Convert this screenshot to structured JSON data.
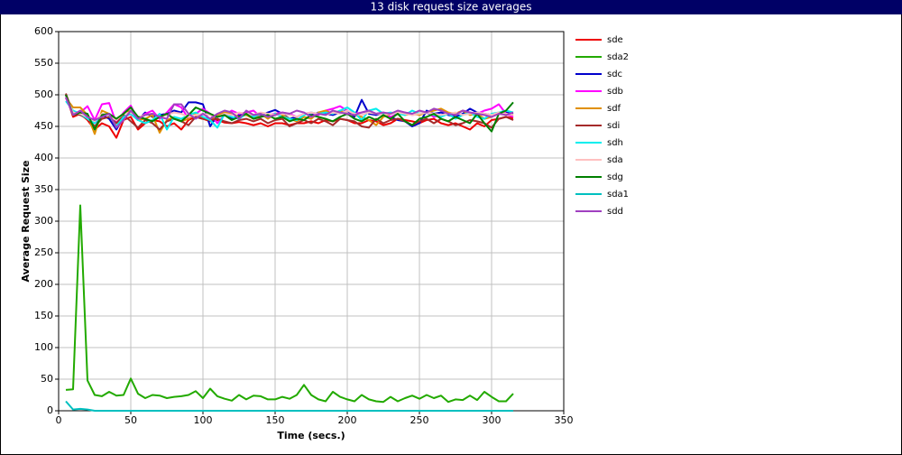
{
  "chart_data": {
    "type": "line",
    "title": "13 disk request size averages",
    "x_label": "Time (secs.)",
    "y_label": "Average Request Size",
    "xlim": [
      0,
      350
    ],
    "xticks": [
      0,
      50,
      100,
      150,
      200,
      250,
      300,
      350
    ],
    "ylim": [
      0,
      600
    ],
    "yticks": [
      0,
      50,
      100,
      150,
      200,
      250,
      300,
      350,
      400,
      450,
      500,
      550,
      600
    ],
    "grid": true,
    "legend": "right",
    "x": [
      5,
      10,
      15,
      20,
      25,
      30,
      35,
      40,
      45,
      50,
      55,
      60,
      65,
      70,
      75,
      80,
      85,
      90,
      95,
      100,
      105,
      110,
      115,
      120,
      125,
      130,
      135,
      140,
      145,
      150,
      155,
      160,
      165,
      170,
      175,
      180,
      185,
      190,
      195,
      200,
      205,
      210,
      215,
      220,
      225,
      230,
      235,
      240,
      245,
      250,
      255,
      260,
      265,
      270,
      275,
      280,
      285,
      290,
      295,
      300,
      305,
      310,
      315
    ],
    "series": [
      {
        "name": "sde",
        "color": "#ee0000",
        "values": [
          500,
          465,
          470,
          460,
          445,
          455,
          450,
          432,
          460,
          465,
          445,
          455,
          460,
          458,
          450,
          455,
          445,
          460,
          465,
          462,
          458,
          460,
          456,
          455,
          457,
          455,
          452,
          455,
          450,
          455,
          455,
          452,
          455,
          455,
          458,
          455,
          460,
          458,
          462,
          460,
          455,
          455,
          460,
          458,
          452,
          455,
          462,
          460,
          458,
          455,
          460,
          462,
          455,
          452,
          455,
          450,
          445,
          455,
          450,
          460,
          462,
          465,
          463
        ]
      },
      {
        "name": "sda2",
        "color": "#22aa00",
        "values": [
          33,
          34,
          325,
          48,
          25,
          23,
          30,
          24,
          25,
          51,
          27,
          20,
          25,
          24,
          20,
          22,
          23,
          25,
          31,
          20,
          35,
          23,
          19,
          16,
          25,
          18,
          24,
          23,
          18,
          18,
          22,
          19,
          25,
          41,
          25,
          18,
          15,
          30,
          22,
          18,
          15,
          25,
          18,
          15,
          14,
          22,
          15,
          20,
          24,
          19,
          25,
          20,
          24,
          14,
          18,
          17,
          24,
          17,
          30,
          22,
          15,
          15,
          27
        ]
      },
      {
        "name": "sdc",
        "color": "#0000cc",
        "values": [
          500,
          470,
          472,
          468,
          448,
          468,
          462,
          445,
          465,
          470,
          460,
          472,
          465,
          468,
          470,
          475,
          472,
          488,
          488,
          485,
          450,
          468,
          470,
          462,
          468,
          470,
          465,
          468,
          472,
          476,
          470,
          462,
          465,
          470,
          468,
          472,
          470,
          468,
          472,
          475,
          465,
          492,
          470,
          468,
          470,
          465,
          460,
          458,
          450,
          455,
          475,
          470,
          472,
          468,
          465,
          470,
          478,
          472,
          470,
          468,
          470,
          472,
          470
        ]
      },
      {
        "name": "sdb",
        "color": "#ff00ff",
        "values": [
          495,
          470,
          472,
          482,
          460,
          485,
          487,
          455,
          472,
          483,
          460,
          470,
          475,
          462,
          472,
          485,
          480,
          462,
          470,
          478,
          470,
          455,
          468,
          475,
          470,
          472,
          475,
          465,
          468,
          470,
          472,
          470,
          465,
          470,
          472,
          468,
          475,
          478,
          482,
          475,
          470,
          472,
          475,
          470,
          472,
          465,
          470,
          472,
          468,
          470,
          472,
          465,
          468,
          470,
          470,
          475,
          472,
          470,
          475,
          478,
          485,
          470,
          465
        ]
      },
      {
        "name": "sdf",
        "color": "#e09000",
        "values": [
          495,
          480,
          480,
          468,
          438,
          475,
          470,
          448,
          470,
          475,
          460,
          462,
          468,
          440,
          460,
          465,
          458,
          462,
          470,
          462,
          460,
          468,
          472,
          470,
          465,
          468,
          462,
          470,
          462,
          470,
          468,
          462,
          458,
          465,
          462,
          472,
          475,
          470,
          475,
          470,
          468,
          465,
          460,
          452,
          465,
          470,
          472,
          468,
          470,
          468,
          472,
          475,
          478,
          472,
          470,
          475,
          468,
          470,
          462,
          465,
          472,
          470,
          468
        ]
      },
      {
        "name": "sdi",
        "color": "#a52a2a",
        "values": [
          502,
          470,
          468,
          462,
          450,
          462,
          465,
          455,
          468,
          458,
          448,
          460,
          455,
          445,
          458,
          462,
          458,
          452,
          465,
          462,
          460,
          462,
          458,
          455,
          460,
          462,
          458,
          462,
          455,
          460,
          462,
          450,
          455,
          460,
          455,
          462,
          458,
          452,
          462,
          460,
          458,
          450,
          448,
          462,
          455,
          460,
          462,
          458,
          452,
          458,
          462,
          455,
          462,
          458,
          452,
          455,
          460,
          458,
          455,
          448,
          462,
          465,
          460
        ]
      },
      {
        "name": "sdh",
        "color": "#00eeee",
        "values": [
          490,
          475,
          470,
          462,
          455,
          470,
          468,
          450,
          465,
          470,
          460,
          455,
          460,
          470,
          445,
          465,
          462,
          468,
          472,
          465,
          460,
          448,
          470,
          465,
          462,
          470,
          465,
          470,
          465,
          470,
          465,
          462,
          460,
          468,
          472,
          470,
          472,
          470,
          475,
          480,
          472,
          460,
          475,
          478,
          470,
          472,
          470,
          468,
          475,
          470,
          472,
          468,
          465,
          470,
          462,
          468,
          472,
          465,
          462,
          470,
          472,
          475,
          472
        ]
      },
      {
        "name": "sda",
        "color": "#ffc0c0",
        "values": [
          498,
          472,
          470,
          465,
          458,
          470,
          468,
          460,
          470,
          472,
          465,
          468,
          470,
          465,
          468,
          472,
          470,
          465,
          468,
          470,
          468,
          465,
          470,
          468,
          472,
          470,
          468,
          472,
          470,
          468,
          470,
          468,
          465,
          470,
          472,
          470,
          468,
          472,
          470,
          475,
          470,
          468,
          472,
          470,
          468,
          470,
          472,
          470,
          468,
          470,
          472,
          470,
          468,
          470,
          472,
          468,
          470,
          472,
          470,
          468,
          472,
          470,
          468
        ]
      },
      {
        "name": "sdg",
        "color": "#008000",
        "values": [
          500,
          468,
          472,
          470,
          445,
          468,
          470,
          462,
          470,
          480,
          465,
          462,
          458,
          465,
          470,
          462,
          458,
          468,
          480,
          475,
          470,
          465,
          468,
          460,
          465,
          470,
          462,
          465,
          468,
          462,
          465,
          458,
          462,
          460,
          468,
          465,
          462,
          458,
          465,
          470,
          462,
          458,
          465,
          460,
          468,
          462,
          470,
          458,
          452,
          462,
          465,
          470,
          462,
          458,
          465,
          460,
          455,
          470,
          455,
          442,
          470,
          475,
          488
        ]
      },
      {
        "name": "sda1",
        "color": "#00c0c0",
        "values": [
          15,
          2,
          3,
          2,
          0,
          0,
          0,
          0,
          0,
          0,
          0,
          0,
          0,
          0,
          0,
          0,
          0,
          0,
          0,
          0,
          0,
          0,
          0,
          0,
          0,
          0,
          0,
          0,
          0,
          0,
          0,
          0,
          0,
          0,
          0,
          0,
          0,
          0,
          0,
          0,
          0,
          0,
          0,
          0,
          0,
          0,
          0,
          0,
          0,
          0,
          0,
          0,
          0,
          0,
          0,
          0,
          0,
          0,
          0,
          0,
          0,
          0,
          0
        ]
      },
      {
        "name": "sdd",
        "color": "#a040c0",
        "values": [
          496,
          468,
          475,
          465,
          460,
          465,
          470,
          448,
          460,
          475,
          462,
          468,
          470,
          465,
          462,
          485,
          485,
          470,
          462,
          470,
          462,
          470,
          475,
          472,
          462,
          475,
          468,
          470,
          465,
          468,
          472,
          470,
          475,
          472,
          465,
          470,
          468,
          475,
          472,
          470,
          468,
          472,
          475,
          470,
          472,
          470,
          475,
          472,
          470,
          475,
          472,
          478,
          475,
          470,
          468,
          475,
          472,
          470,
          468,
          465,
          470,
          468,
          472
        ]
      }
    ]
  }
}
